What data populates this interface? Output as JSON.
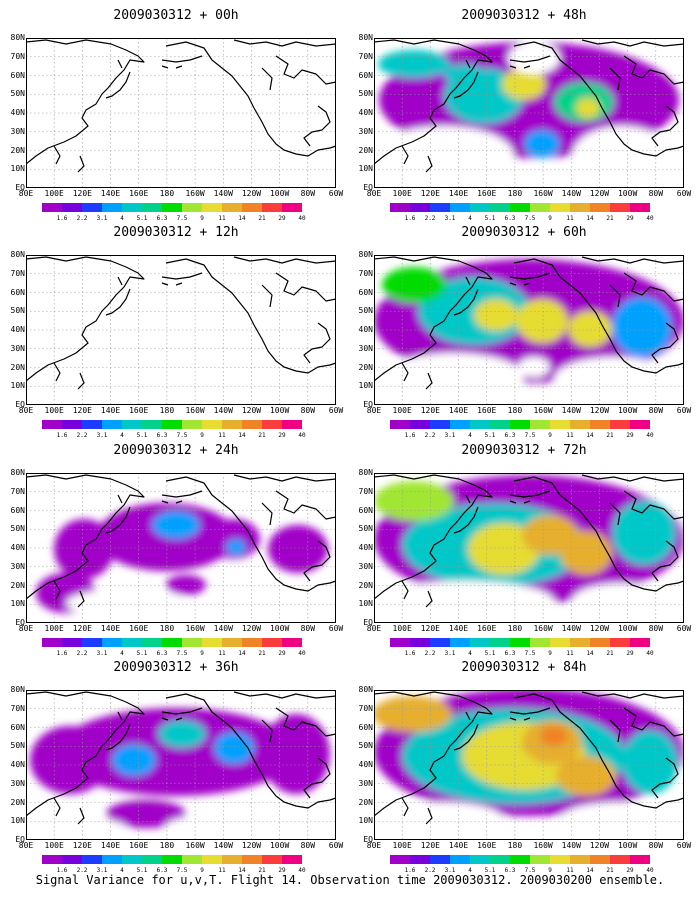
{
  "footer": "Signal Variance for u,v,T. Flight 14. Observation time 2009030312. 2009030200 ensemble.",
  "lat_labels": [
    "80N",
    "70N",
    "60N",
    "50N",
    "40N",
    "30N",
    "20N",
    "10N",
    "EQ"
  ],
  "lon_labels": [
    "80E",
    "100E",
    "120E",
    "140E",
    "160E",
    "180",
    "160W",
    "140W",
    "120W",
    "100W",
    "80W",
    "60W"
  ],
  "colorbar": {
    "labels": [
      "1.6",
      "2.2",
      "3.1",
      "4",
      "5.1",
      "6.3",
      "7.5",
      "9",
      "11",
      "14",
      "21",
      "29",
      "40"
    ],
    "colors": [
      "#a000c8",
      "#7800dc",
      "#1e3cff",
      "#00a0ff",
      "#00c8c8",
      "#00d28c",
      "#00dc00",
      "#a0e632",
      "#e6dc32",
      "#e6af2d",
      "#f08228",
      "#fa3c3c",
      "#f00082"
    ]
  },
  "panels": [
    {
      "title": "2009030312 + 00h",
      "level": 0
    },
    {
      "title": "2009030312 + 12h",
      "level": 1
    },
    {
      "title": "2009030312 + 24h",
      "level": 2
    },
    {
      "title": "2009030312 + 36h",
      "level": 3
    },
    {
      "title": "2009030312 + 48h",
      "level": 4
    },
    {
      "title": "2009030312 + 60h",
      "level": 5
    },
    {
      "title": "2009030312 + 72h",
      "level": 6
    },
    {
      "title": "2009030312 + 84h",
      "level": 7
    }
  ]
}
